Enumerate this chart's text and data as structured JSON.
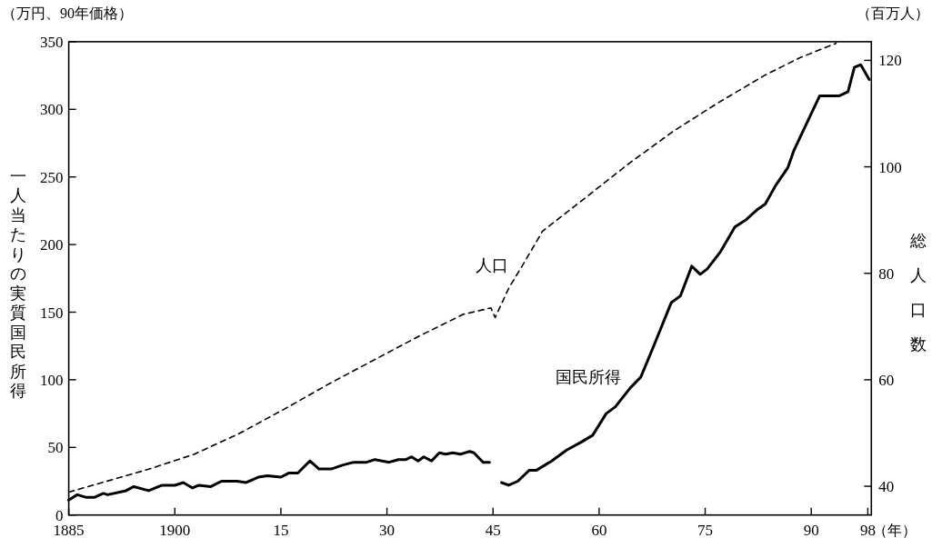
{
  "chart_data": {
    "type": "line",
    "xlabel": "（年）",
    "ylabel": "一人当たりの実質国民所得",
    "y2label": "総人口数",
    "annotations": [
      "（万円、90年価格）",
      "（百万人）"
    ],
    "xlim": [
      1885,
      1998.5
    ],
    "xticks": [
      1885,
      1900,
      {
        "value": 1915,
        "label": "15"
      },
      {
        "value": 1930,
        "label": "30"
      },
      {
        "value": 1945,
        "label": "45"
      },
      {
        "value": 1960,
        "label": "60"
      },
      {
        "value": 1975,
        "label": "75"
      },
      {
        "value": 1990,
        "label": "90"
      },
      {
        "value": 1998,
        "label": "98"
      }
    ],
    "ylim": [
      0,
      350
    ],
    "yticks": [
      0,
      50,
      100,
      150,
      200,
      250,
      300,
      350
    ],
    "y2lim": [
      34.6,
      123.5
    ],
    "y2ticks": [
      40,
      60,
      80,
      100,
      120
    ],
    "grid": false,
    "legend": false,
    "series": [
      {
        "name": "国民所得",
        "color": "#000000",
        "line_style": "solid",
        "x": [
          1885,
          1886.2,
          1887.5,
          1888.6,
          1889.9,
          1890.5,
          1893.1,
          1894.2,
          1896.3,
          1898.2,
          1900,
          1901.2,
          1902.5,
          1903.4,
          1905.1,
          1906.6,
          1908.8,
          1910.1,
          1911.8,
          1913.1,
          1915,
          1916.1,
          1917.4,
          1919.1,
          1920.4,
          1922.1,
          1923.8,
          1925.3,
          1927.1,
          1928.3,
          1930.3,
          1931.6,
          1932.7,
          1933.5,
          1934.4,
          1935.2,
          1936.3,
          1937.4,
          1938.3,
          1939.3,
          1940.4,
          1941.7,
          1942.3,
          1943.6,
          1944.5,
          1945.3,
          1946.2,
          1947.2,
          1948.5,
          1950.1,
          1951.1,
          1953.3,
          1955.4,
          1957.5,
          1959.1,
          1961,
          1962.3,
          1964.4,
          1965.9,
          1967.8,
          1970.2,
          1971.5,
          1973.1,
          1974.3,
          1975.3,
          1977.2,
          1979.2,
          1980.7,
          1982.4,
          1983.5,
          1985,
          1986.7,
          1987.5,
          1989.3,
          1991.2,
          1994,
          1995.2,
          1996.1,
          1997,
          1998.2
        ],
        "values": [
          11,
          15,
          13,
          13,
          16,
          15,
          18,
          21,
          18,
          22,
          22,
          24,
          20,
          22,
          21,
          25,
          25,
          24,
          28,
          29,
          28,
          31,
          31,
          40,
          34,
          34,
          37,
          39,
          39,
          41,
          39,
          41,
          41,
          43,
          40,
          43,
          40,
          46,
          45,
          46,
          45,
          47,
          46,
          39,
          39,
          null,
          24,
          22,
          25,
          33,
          33,
          40,
          48,
          54,
          59,
          75,
          80,
          94,
          102,
          126,
          157,
          162,
          184,
          178,
          182,
          195,
          213,
          218,
          226,
          230,
          244,
          257,
          269,
          289,
          310,
          310,
          313,
          331,
          333,
          322
        ]
      },
      {
        "name": "人口",
        "color": "#000000",
        "axis": "y2",
        "line_style": "dashed",
        "x": [
          1885,
          1896.3,
          1902.7,
          1909.1,
          1915.5,
          1921.9,
          1928,
          1934.4,
          1940.8,
          1944.7,
          1945.3,
          1946,
          1947.3,
          1949,
          1952,
          1957.5,
          1964,
          1970.4,
          1976.8,
          1983.3,
          1988.4,
          1993.5
        ],
        "values": [
          38.9,
          43.2,
          46,
          49.9,
          54.5,
          59.3,
          63.6,
          68.1,
          72.3,
          73.5,
          71.7,
          73.7,
          77.4,
          81.1,
          87.9,
          93.6,
          100.4,
          106.6,
          112,
          117.1,
          120.5,
          123.2
        ]
      }
    ]
  }
}
